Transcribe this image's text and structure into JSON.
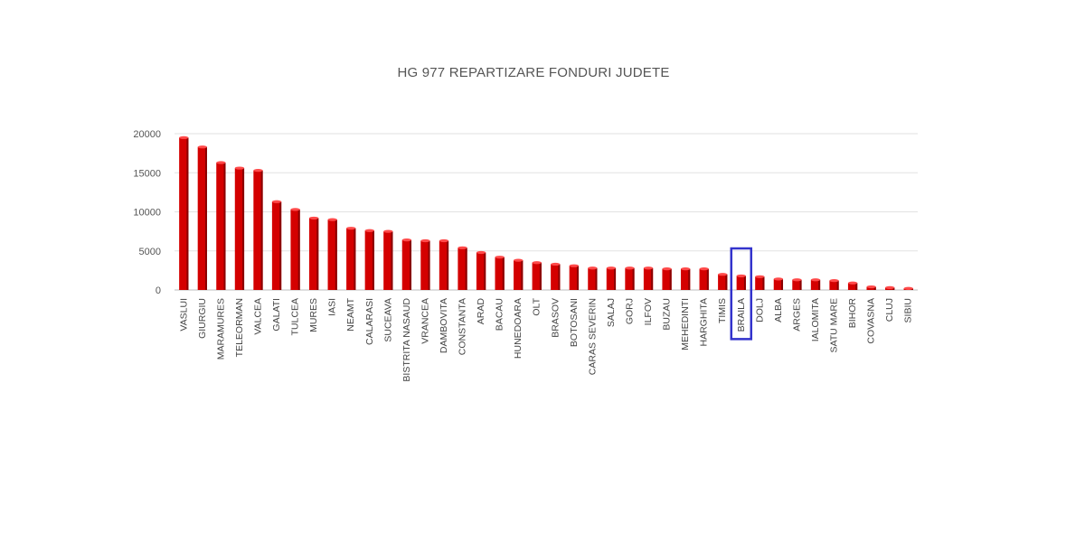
{
  "chart_data": {
    "type": "bar",
    "title": "HG 977 REPARTIZARE FONDURI JUDETE",
    "xlabel": "",
    "ylabel": "",
    "ylim": [
      0,
      20000
    ],
    "yticks": [
      0,
      5000,
      10000,
      15000,
      20000
    ],
    "grid": true,
    "legend": "none",
    "bar_color": "#d40000",
    "highlight_color": "#3333cc",
    "highlighted_category": "BRAILA",
    "categories": [
      "VASLUI",
      "GIURGIU",
      "MARAMURES",
      "TELEORMAN",
      "VALCEA",
      "GALATI",
      "TULCEA",
      "MURES",
      "IASI",
      "NEAMT",
      "CALARASI",
      "SUCEAVA",
      "BISTRITA NASAUD",
      "VRANCEA",
      "DAMBOVITA",
      "CONSTANTA",
      "ARAD",
      "BACAU",
      "HUNEDOARA",
      "OLT",
      "BRASOV",
      "BOTOSANI",
      "CARAS SEVERIN",
      "SALAJ",
      "GORJ",
      "ILFOV",
      "BUZAU",
      "MEHEDINTI",
      "HARGHITA",
      "TIMIS",
      "BRAILA",
      "DOLJ",
      "ALBA",
      "ARGES",
      "IALOMITA",
      "SATU MARE",
      "BIHOR",
      "COVASNA",
      "CLUJ",
      "SIBIU"
    ],
    "values": [
      19500,
      18300,
      16300,
      15600,
      15300,
      11300,
      10300,
      9200,
      9000,
      7900,
      7600,
      7500,
      6400,
      6300,
      6300,
      5400,
      4800,
      4200,
      3800,
      3500,
      3300,
      3100,
      2800,
      2800,
      2800,
      2800,
      2700,
      2700,
      2700,
      2000,
      1800,
      1700,
      1400,
      1300,
      1300,
      1200,
      900,
      400,
      300,
      200
    ]
  }
}
